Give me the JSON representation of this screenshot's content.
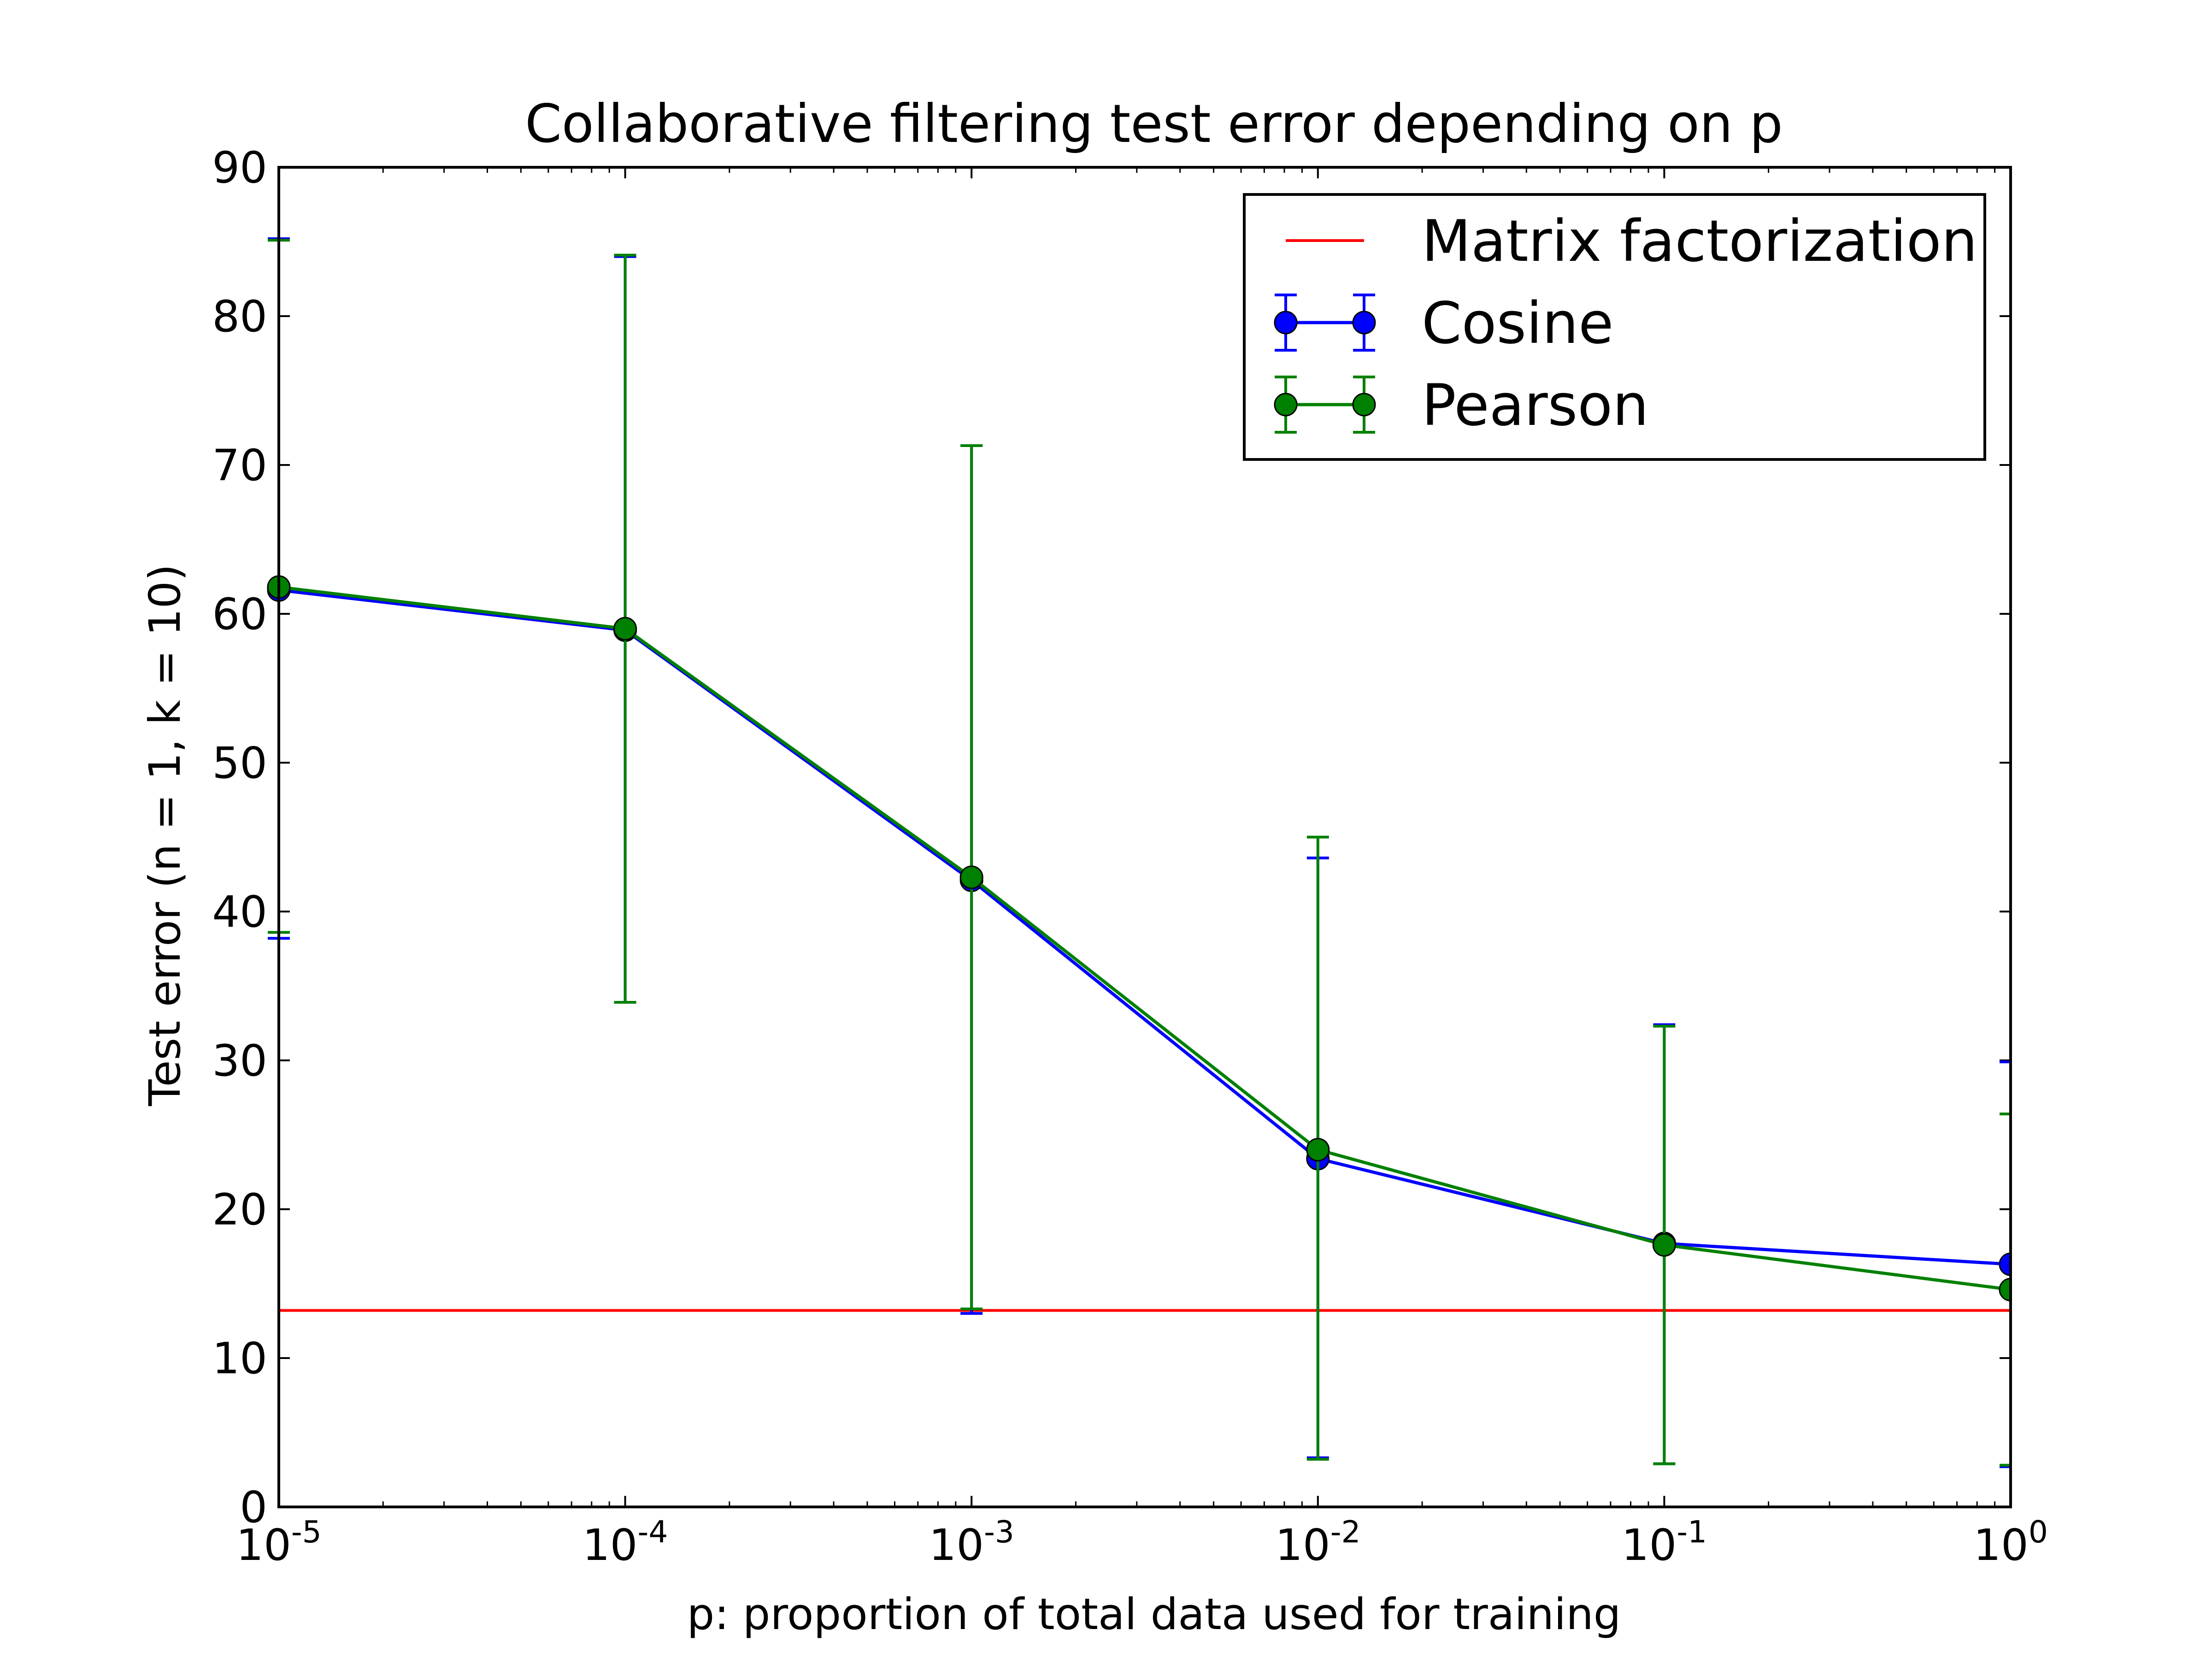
{
  "chart_data": {
    "type": "line",
    "title": "Collaborative filtering test error depending on p",
    "xlabel": "p: proportion of total data used for training",
    "ylabel": "Test error (n = 1, k = 10)",
    "xscale": "log",
    "xlim": [
      1e-05,
      1
    ],
    "ylim": [
      0,
      90
    ],
    "x": [
      1e-05,
      0.0001,
      0.001,
      0.01,
      0.1,
      1
    ],
    "x_tick_labels": [
      {
        "base": "10",
        "exp": "-5"
      },
      {
        "base": "10",
        "exp": "-4"
      },
      {
        "base": "10",
        "exp": "-3"
      },
      {
        "base": "10",
        "exp": "-2"
      },
      {
        "base": "10",
        "exp": "-1"
      },
      {
        "base": "10",
        "exp": "0"
      }
    ],
    "y_ticks": [
      0,
      10,
      20,
      30,
      40,
      50,
      60,
      70,
      80,
      90
    ],
    "series": [
      {
        "name": "Cosine",
        "color": "#0000ff",
        "marker": "circle",
        "values": [
          61.6,
          58.9,
          42.1,
          23.4,
          17.7,
          16.3
        ],
        "err_low": [
          38.2,
          33.9,
          13.0,
          3.3,
          2.9,
          2.7
        ],
        "err_high": [
          85.2,
          84.0,
          71.3,
          43.6,
          32.4,
          29.9
        ]
      },
      {
        "name": "Pearson",
        "color": "#008000",
        "marker": "circle",
        "values": [
          61.8,
          59.0,
          42.3,
          24.0,
          17.6,
          14.6
        ],
        "err_low": [
          38.6,
          33.9,
          13.3,
          3.2,
          2.9,
          2.8
        ],
        "err_high": [
          85.1,
          84.1,
          71.3,
          45.0,
          32.3,
          26.4
        ]
      }
    ],
    "reference_lines": [
      {
        "name": "Matrix factorization",
        "color": "#ff0000",
        "y": 13.2
      }
    ],
    "legend": {
      "position": "top-right",
      "entries": [
        {
          "label": "Matrix factorization",
          "kind": "line",
          "color": "#ff0000"
        },
        {
          "label": "Cosine",
          "kind": "errorbar-marker",
          "color": "#0000ff"
        },
        {
          "label": "Pearson",
          "kind": "errorbar-marker",
          "color": "#008000"
        }
      ]
    },
    "grid": false
  }
}
